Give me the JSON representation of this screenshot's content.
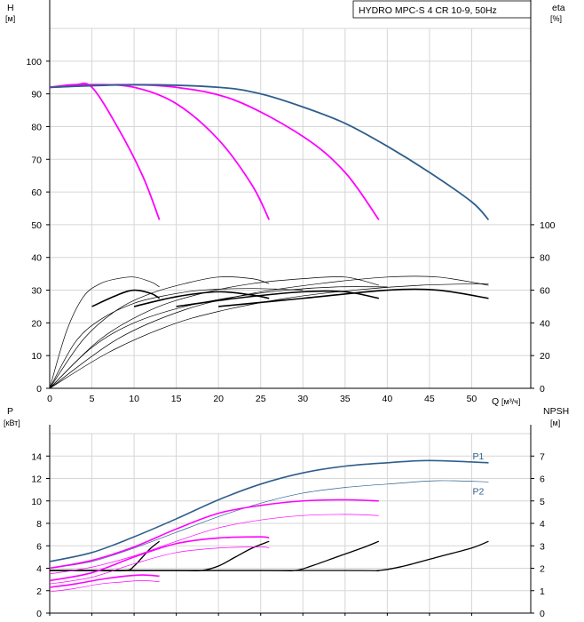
{
  "title": "HYDRO MPC-S 4 CR 10-9, 50Hz",
  "colors": {
    "magenta": "#ff00ff",
    "blue": "#2e5e8c",
    "black": "#000000",
    "grid": "#d6d6d6"
  },
  "chart_data": [
    {
      "type": "line",
      "panel": "top",
      "ylabel_left": "H",
      "yunit_left": "[м]",
      "ylabel_right": "eta",
      "yunit_right": "[%]",
      "xlabel": "Q",
      "xunit": "[м³/ч]",
      "xlim": [
        0,
        57
      ],
      "ylim_left": [
        0,
        110
      ],
      "ylim_right": [
        0,
        220
      ],
      "x_ticks": [
        0,
        5,
        10,
        15,
        20,
        25,
        30,
        35,
        40,
        45,
        50
      ],
      "y_ticks_left": [
        0,
        10,
        20,
        30,
        40,
        50,
        60,
        70,
        80,
        90,
        100
      ],
      "y_ticks_right": [
        0,
        20,
        40,
        60,
        80,
        100
      ],
      "head_series": [
        {
          "color": "magenta",
          "points": [
            [
              0,
              92
            ],
            [
              3,
              92.8
            ],
            [
              5,
              92
            ],
            [
              8,
              80
            ],
            [
              11,
              65
            ],
            [
              13,
              51.5
            ]
          ]
        },
        {
          "color": "magenta",
          "points": [
            [
              0,
              92
            ],
            [
              5,
              92.8
            ],
            [
              10,
              92
            ],
            [
              15,
              87
            ],
            [
              20,
              76
            ],
            [
              24,
              62
            ],
            [
              26,
              51.5
            ]
          ]
        },
        {
          "color": "magenta",
          "points": [
            [
              0,
              92
            ],
            [
              8,
              92.8
            ],
            [
              15,
              92
            ],
            [
              22,
              88
            ],
            [
              30,
              77
            ],
            [
              35,
              66
            ],
            [
              39,
              51.5
            ]
          ]
        },
        {
          "color": "blue",
          "points": [
            [
              0,
              92
            ],
            [
              10,
              92.8
            ],
            [
              20,
              92
            ],
            [
              25,
              90
            ],
            [
              30,
              86
            ],
            [
              35,
              81
            ],
            [
              40,
              74
            ],
            [
              45,
              66
            ],
            [
              50,
              57
            ],
            [
              52,
              51.5
            ]
          ]
        }
      ],
      "eta_series": [
        {
          "color": "black",
          "weight": "thin",
          "points": [
            [
              0,
              0
            ],
            [
              2,
              35
            ],
            [
              4,
              56
            ],
            [
              6,
              64
            ],
            [
              8,
              67
            ],
            [
              10,
              68
            ],
            [
              12,
              65
            ],
            [
              13,
              62
            ]
          ]
        },
        {
          "color": "black",
          "weight": "thick",
          "points": [
            [
              5,
              50
            ],
            [
              8,
              57
            ],
            [
              10,
              60
            ],
            [
              12,
              58
            ],
            [
              13,
              55
            ]
          ]
        },
        {
          "color": "black",
          "weight": "thin",
          "points": [
            [
              0,
              0
            ],
            [
              4,
              30
            ],
            [
              8,
              48
            ],
            [
              12,
              58
            ],
            [
              16,
              64
            ],
            [
              20,
              68
            ],
            [
              24,
              67
            ],
            [
              26,
              64
            ]
          ]
        },
        {
          "color": "black",
          "weight": "thick",
          "points": [
            [
              10,
              50
            ],
            [
              15,
              56
            ],
            [
              20,
              59
            ],
            [
              24,
              57
            ],
            [
              26,
              55
            ]
          ]
        },
        {
          "color": "black",
          "weight": "thin",
          "points": [
            [
              0,
              0
            ],
            [
              6,
              30
            ],
            [
              12,
              48
            ],
            [
              18,
              58
            ],
            [
              24,
              64
            ],
            [
              30,
              67
            ],
            [
              35,
              68
            ],
            [
              39,
              63
            ]
          ]
        },
        {
          "color": "black",
          "weight": "thick",
          "points": [
            [
              15,
              50
            ],
            [
              22,
              55
            ],
            [
              30,
              59
            ],
            [
              35,
              59
            ],
            [
              39,
              55
            ]
          ]
        },
        {
          "color": "black",
          "weight": "thin",
          "points": [
            [
              0,
              0
            ],
            [
              8,
              30
            ],
            [
              16,
              48
            ],
            [
              24,
              58
            ],
            [
              32,
              64
            ],
            [
              40,
              68
            ],
            [
              46,
              68
            ],
            [
              52,
              63
            ]
          ]
        },
        {
          "color": "black",
          "weight": "thick",
          "points": [
            [
              20,
              50
            ],
            [
              30,
              55
            ],
            [
              40,
              60
            ],
            [
              46,
              60
            ],
            [
              52,
              55
            ]
          ]
        },
        {
          "color": "black",
          "weight": "thin",
          "points": [
            [
              0,
              0
            ],
            [
              3,
              28
            ],
            [
              6,
              42
            ],
            [
              10,
              52
            ],
            [
              14,
              57
            ],
            [
              18,
              60
            ],
            [
              24,
              61
            ],
            [
              30,
              60
            ]
          ]
        },
        {
          "color": "black",
          "weight": "thin",
          "points": [
            [
              0,
              0
            ],
            [
              5,
              25
            ],
            [
              10,
              40
            ],
            [
              16,
              50
            ],
            [
              22,
              56
            ],
            [
              28,
              60
            ],
            [
              34,
              62
            ],
            [
              40,
              62
            ]
          ]
        },
        {
          "color": "black",
          "weight": "thin",
          "points": [
            [
              0,
              0
            ],
            [
              7,
              22
            ],
            [
              14,
              38
            ],
            [
              20,
              47
            ],
            [
              28,
              55
            ],
            [
              36,
              60
            ],
            [
              44,
              63
            ],
            [
              52,
              64
            ]
          ]
        }
      ]
    },
    {
      "type": "line",
      "panel": "bottom",
      "ylabel_left": "P",
      "yunit_left": "[кВт]",
      "ylabel_right": "NPSH",
      "yunit_right": "[м]",
      "xlim": [
        0,
        57
      ],
      "ylim_left": [
        0,
        16
      ],
      "ylim_right": [
        0,
        8
      ],
      "y_ticks_left": [
        0,
        2,
        4,
        6,
        8,
        10,
        12,
        14
      ],
      "y_ticks_right": [
        0,
        1,
        2,
        3,
        4,
        5,
        6,
        7
      ],
      "power_series": [
        {
          "name": "P1",
          "color": "blue",
          "weight": "thick",
          "points": [
            [
              0,
              4.6
            ],
            [
              5,
              5.4
            ],
            [
              10,
              6.8
            ],
            [
              15,
              8.4
            ],
            [
              20,
              10.1
            ],
            [
              25,
              11.5
            ],
            [
              30,
              12.5
            ],
            [
              35,
              13.1
            ],
            [
              40,
              13.4
            ],
            [
              45,
              13.6
            ],
            [
              52,
              13.4
            ]
          ]
        },
        {
          "name": "P2",
          "color": "blue",
          "weight": "thin",
          "points": [
            [
              0,
              4.0
            ],
            [
              5,
              4.6
            ],
            [
              10,
              5.8
            ],
            [
              15,
              7.2
            ],
            [
              20,
              8.6
            ],
            [
              25,
              9.8
            ],
            [
              30,
              10.7
            ],
            [
              35,
              11.2
            ],
            [
              40,
              11.5
            ],
            [
              46,
              11.8
            ],
            [
              52,
              11.7
            ]
          ]
        },
        {
          "color": "magenta",
          "weight": "thick",
          "points": [
            [
              0,
              4.0
            ],
            [
              5,
              4.7
            ],
            [
              10,
              5.9
            ],
            [
              15,
              7.5
            ],
            [
              20,
              8.9
            ],
            [
              25,
              9.6
            ],
            [
              30,
              10.0
            ],
            [
              35,
              10.1
            ],
            [
              39,
              10.0
            ]
          ]
        },
        {
          "color": "magenta",
          "weight": "thin",
          "points": [
            [
              0,
              3.5
            ],
            [
              5,
              4.1
            ],
            [
              10,
              5.1
            ],
            [
              15,
              6.4
            ],
            [
              20,
              7.6
            ],
            [
              25,
              8.3
            ],
            [
              30,
              8.7
            ],
            [
              35,
              8.8
            ],
            [
              39,
              8.7
            ]
          ]
        },
        {
          "color": "magenta",
          "weight": "thick",
          "points": [
            [
              0,
              2.9
            ],
            [
              5,
              3.6
            ],
            [
              10,
              5.0
            ],
            [
              15,
              6.2
            ],
            [
              20,
              6.7
            ],
            [
              25,
              6.8
            ],
            [
              26,
              6.7
            ]
          ]
        },
        {
          "color": "magenta",
          "weight": "thin",
          "points": [
            [
              0,
              2.6
            ],
            [
              5,
              3.2
            ],
            [
              10,
              4.4
            ],
            [
              15,
              5.4
            ],
            [
              20,
              5.8
            ],
            [
              25,
              5.9
            ],
            [
              26,
              5.8
            ]
          ]
        },
        {
          "color": "magenta",
          "weight": "thick",
          "points": [
            [
              0,
              2.3
            ],
            [
              3,
              2.6
            ],
            [
              6,
              3.0
            ],
            [
              9,
              3.3
            ],
            [
              11,
              3.4
            ],
            [
              13,
              3.3
            ]
          ]
        },
        {
          "color": "magenta",
          "weight": "thin",
          "points": [
            [
              0,
              1.9
            ],
            [
              3,
              2.2
            ],
            [
              6,
              2.6
            ],
            [
              9,
              2.8
            ],
            [
              11,
              2.9
            ],
            [
              13,
              2.8
            ]
          ]
        }
      ],
      "npsh_series": [
        {
          "color": "black",
          "points": [
            [
              0,
              1.9
            ],
            [
              5,
              1.9
            ],
            [
              9,
              1.9
            ],
            [
              10,
              2.1
            ],
            [
              11,
              2.5
            ],
            [
              12,
              2.9
            ],
            [
              13,
              3.2
            ]
          ]
        },
        {
          "color": "black",
          "points": [
            [
              0,
              1.9
            ],
            [
              15,
              1.9
            ],
            [
              18,
              1.9
            ],
            [
              20,
              2.1
            ],
            [
              22,
              2.5
            ],
            [
              24,
              2.9
            ],
            [
              26,
              3.2
            ]
          ]
        },
        {
          "color": "black",
          "points": [
            [
              0,
              1.9
            ],
            [
              25,
              1.9
            ],
            [
              29,
              1.9
            ],
            [
              31,
              2.1
            ],
            [
              34,
              2.5
            ],
            [
              37,
              2.9
            ],
            [
              39,
              3.2
            ]
          ]
        },
        {
          "color": "black",
          "points": [
            [
              0,
              1.9
            ],
            [
              35,
              1.9
            ],
            [
              39,
              1.9
            ],
            [
              42,
              2.1
            ],
            [
              46,
              2.5
            ],
            [
              50,
              2.9
            ],
            [
              52,
              3.2
            ]
          ]
        }
      ]
    }
  ]
}
